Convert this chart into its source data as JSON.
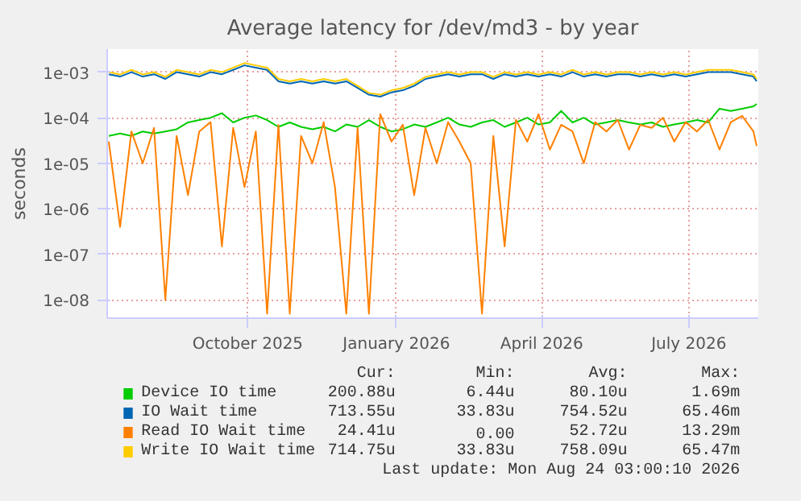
{
  "chart_data": {
    "type": "line",
    "title": "Average latency for /dev/md3 - by year",
    "ylabel": "seconds",
    "x": [
      "2025-07-07",
      "2025-07-14",
      "2025-07-21",
      "2025-07-28",
      "2025-08-04",
      "2025-08-11",
      "2025-08-18",
      "2025-08-25",
      "2025-09-01",
      "2025-09-08",
      "2025-09-15",
      "2025-09-22",
      "2025-09-29",
      "2025-10-06",
      "2025-10-13",
      "2025-10-20",
      "2025-10-27",
      "2025-11-03",
      "2025-11-10",
      "2025-11-17",
      "2025-11-24",
      "2025-12-01",
      "2025-12-08",
      "2025-12-15",
      "2025-12-22",
      "2025-12-29",
      "2026-01-05",
      "2026-01-12",
      "2026-01-19",
      "2026-01-26",
      "2026-02-02",
      "2026-02-09",
      "2026-02-16",
      "2026-02-23",
      "2026-03-02",
      "2026-03-09",
      "2026-03-16",
      "2026-03-23",
      "2026-03-30",
      "2026-04-06",
      "2026-04-13",
      "2026-04-20",
      "2026-04-27",
      "2026-05-04",
      "2026-05-11",
      "2026-05-18",
      "2026-05-25",
      "2026-06-01",
      "2026-06-08",
      "2026-06-15",
      "2026-06-22",
      "2026-06-29",
      "2026-07-06",
      "2026-07-13",
      "2026-07-20",
      "2026-07-27",
      "2026-08-03",
      "2026-08-10",
      "2026-08-12"
    ],
    "series": [
      {
        "name": "Device IO time",
        "color": "#00cc00",
        "values": [
          4e-05,
          4.5e-05,
          4e-05,
          5e-05,
          4.5e-05,
          5e-05,
          5.6e-05,
          7.9e-05,
          8.9e-05,
          0.0001,
          0.000126,
          7.9e-05,
          0.0001,
          0.000112,
          8.9e-05,
          6.3e-05,
          7.9e-05,
          6.3e-05,
          5.6e-05,
          6.3e-05,
          5e-05,
          7.1e-05,
          6.3e-05,
          8.9e-05,
          6.3e-05,
          5e-05,
          5.6e-05,
          7.1e-05,
          6.3e-05,
          7.9e-05,
          0.0001,
          7.1e-05,
          6.3e-05,
          7.9e-05,
          8.9e-05,
          6.3e-05,
          7.9e-05,
          0.0001,
          7.1e-05,
          7.9e-05,
          0.000141,
          7.9e-05,
          0.0001,
          7.1e-05,
          7.9e-05,
          8.9e-05,
          7.9e-05,
          7.1e-05,
          7.9e-05,
          6.3e-05,
          7.1e-05,
          7.9e-05,
          8.9e-05,
          7.9e-05,
          0.000158,
          0.000141,
          0.000158,
          0.000178,
          0.0002
        ]
      },
      {
        "name": "IO Wait time",
        "color": "#0066b3",
        "values": [
          0.0009,
          0.0008,
          0.001,
          0.0008,
          0.0009,
          0.00071,
          0.001,
          0.0009,
          0.0008,
          0.001,
          0.0009,
          0.00112,
          0.00141,
          0.00126,
          0.00112,
          0.00063,
          0.00056,
          0.00063,
          0.00056,
          0.00063,
          0.00056,
          0.00063,
          0.00045,
          0.00032,
          0.00029,
          0.00036,
          0.0004,
          0.0005,
          0.00071,
          0.0008,
          0.0009,
          0.0008,
          0.0009,
          0.0009,
          0.00071,
          0.0009,
          0.0008,
          0.0009,
          0.0008,
          0.0009,
          0.0008,
          0.001,
          0.0008,
          0.0009,
          0.0008,
          0.0009,
          0.0009,
          0.0008,
          0.0009,
          0.0008,
          0.0009,
          0.0008,
          0.0009,
          0.001,
          0.001,
          0.001,
          0.0009,
          0.0008,
          0.00063
        ]
      },
      {
        "name": "Read IO Wait time",
        "color": "#ff8000",
        "values": [
          3e-05,
          4e-07,
          5e-05,
          1e-05,
          6e-05,
          1e-08,
          4e-05,
          2e-06,
          5e-05,
          8e-05,
          1.5e-07,
          6e-05,
          3e-06,
          5e-05,
          5e-09,
          7e-05,
          5e-09,
          4e-05,
          1e-05,
          8e-05,
          3e-06,
          5e-09,
          6e-05,
          5e-09,
          0.00012,
          3e-05,
          7e-05,
          2e-06,
          6e-05,
          1e-05,
          8e-05,
          3e-05,
          1e-05,
          5e-09,
          4e-05,
          1.5e-07,
          9e-05,
          3e-05,
          0.00012,
          2e-05,
          7e-05,
          5e-05,
          1e-05,
          8e-05,
          5e-05,
          9e-05,
          2e-05,
          7e-05,
          6e-05,
          0.0001,
          3e-05,
          8e-05,
          5e-05,
          9e-05,
          2e-05,
          8e-05,
          0.00011,
          5e-05,
          2.4e-05
        ]
      },
      {
        "name": "Write IO Wait time",
        "color": "#ffcc00",
        "values": [
          0.001,
          0.00089,
          0.00112,
          0.00089,
          0.001,
          0.00079,
          0.00112,
          0.001,
          0.00089,
          0.00112,
          0.001,
          0.00126,
          0.00158,
          0.00141,
          0.00126,
          0.00071,
          0.00063,
          0.00071,
          0.00063,
          0.00071,
          0.00063,
          0.00071,
          0.0005,
          0.00035,
          0.00032,
          0.0004,
          0.00045,
          0.00056,
          0.00079,
          0.00089,
          0.001,
          0.00089,
          0.001,
          0.001,
          0.00079,
          0.001,
          0.00089,
          0.001,
          0.00089,
          0.001,
          0.00089,
          0.00112,
          0.00089,
          0.001,
          0.00089,
          0.001,
          0.001,
          0.00089,
          0.001,
          0.00089,
          0.001,
          0.00089,
          0.001,
          0.00112,
          0.00112,
          0.00112,
          0.001,
          0.00089,
          0.00071
        ]
      }
    ],
    "log": "y",
    "xlim": [
      "2025-07-06",
      "2026-08-13"
    ],
    "ylim": [
      4e-09,
      0.0032
    ],
    "xticks": [
      {
        "value": "2025-10-01",
        "label": "October 2025"
      },
      {
        "value": "2026-01-01",
        "label": "January 2026"
      },
      {
        "value": "2026-04-01",
        "label": "April 2026"
      },
      {
        "value": "2026-07-01",
        "label": "July 2026"
      }
    ],
    "yticks": [
      {
        "value": 1e-08,
        "label": "1e-08"
      },
      {
        "value": 1e-07,
        "label": "1e-07"
      },
      {
        "value": 1e-06,
        "label": "1e-06"
      },
      {
        "value": 1e-05,
        "label": "1e-05"
      },
      {
        "value": 0.0001,
        "label": "1e-04"
      },
      {
        "value": 0.001,
        "label": "1e-03"
      }
    ],
    "grid": true,
    "legend": "bottom",
    "line_style": "solid",
    "annotations": [
      "Cur:",
      "Min:",
      "Avg:",
      "Max:",
      "200.88u",
      "6.44u",
      "80.10u",
      "1.69m",
      "713.55u",
      "33.83u",
      "754.52u",
      "65.46m",
      "24.41u",
      "0.00",
      "52.72u",
      "13.29m",
      "714.75u",
      "33.83u",
      "758.09u",
      "65.47m",
      "Last update: Mon Aug 24 03:00:10 2026"
    ]
  }
}
